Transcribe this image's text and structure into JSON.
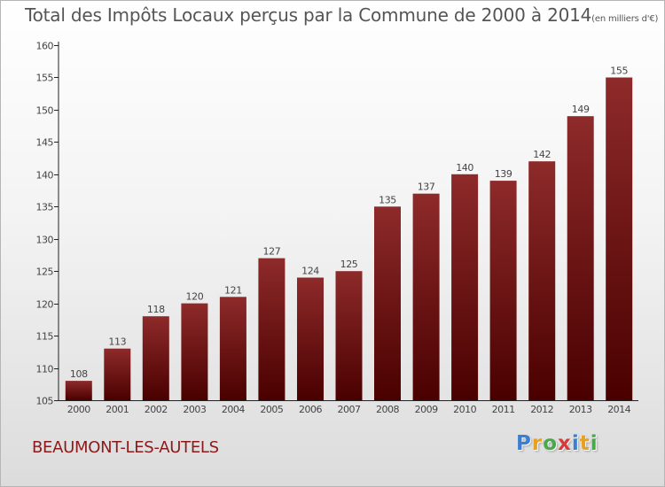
{
  "chart_data": {
    "type": "bar",
    "title": "Total des Impôts Locaux perçus par la Commune de 2000 à 2014",
    "unit_note": "(en milliers d'€)",
    "categories": [
      "2000",
      "2001",
      "2002",
      "2003",
      "2004",
      "2005",
      "2006",
      "2007",
      "2008",
      "2009",
      "2010",
      "2011",
      "2012",
      "2013",
      "2014"
    ],
    "values": [
      108,
      113,
      118,
      120,
      121,
      127,
      124,
      125,
      135,
      137,
      140,
      139,
      142,
      149,
      155
    ],
    "ylim": [
      105,
      160
    ],
    "yticks": [
      105,
      110,
      115,
      120,
      125,
      130,
      135,
      140,
      145,
      150,
      155,
      160
    ],
    "xlabel": "",
    "ylabel": "",
    "grid": false,
    "bar_color_top": "#8e2a2a",
    "bar_color_bottom": "#4a0000"
  },
  "commune": "BEAUMONT-LES-AUTELS",
  "logo": {
    "letters": [
      "P",
      "r",
      "o",
      "x",
      "i",
      "t",
      "i"
    ],
    "colors": [
      "#3a7fd5",
      "#e8a020",
      "#4aa84a",
      "#d83a3a",
      "#3a7fd5",
      "#e8a020",
      "#4aa84a"
    ]
  }
}
